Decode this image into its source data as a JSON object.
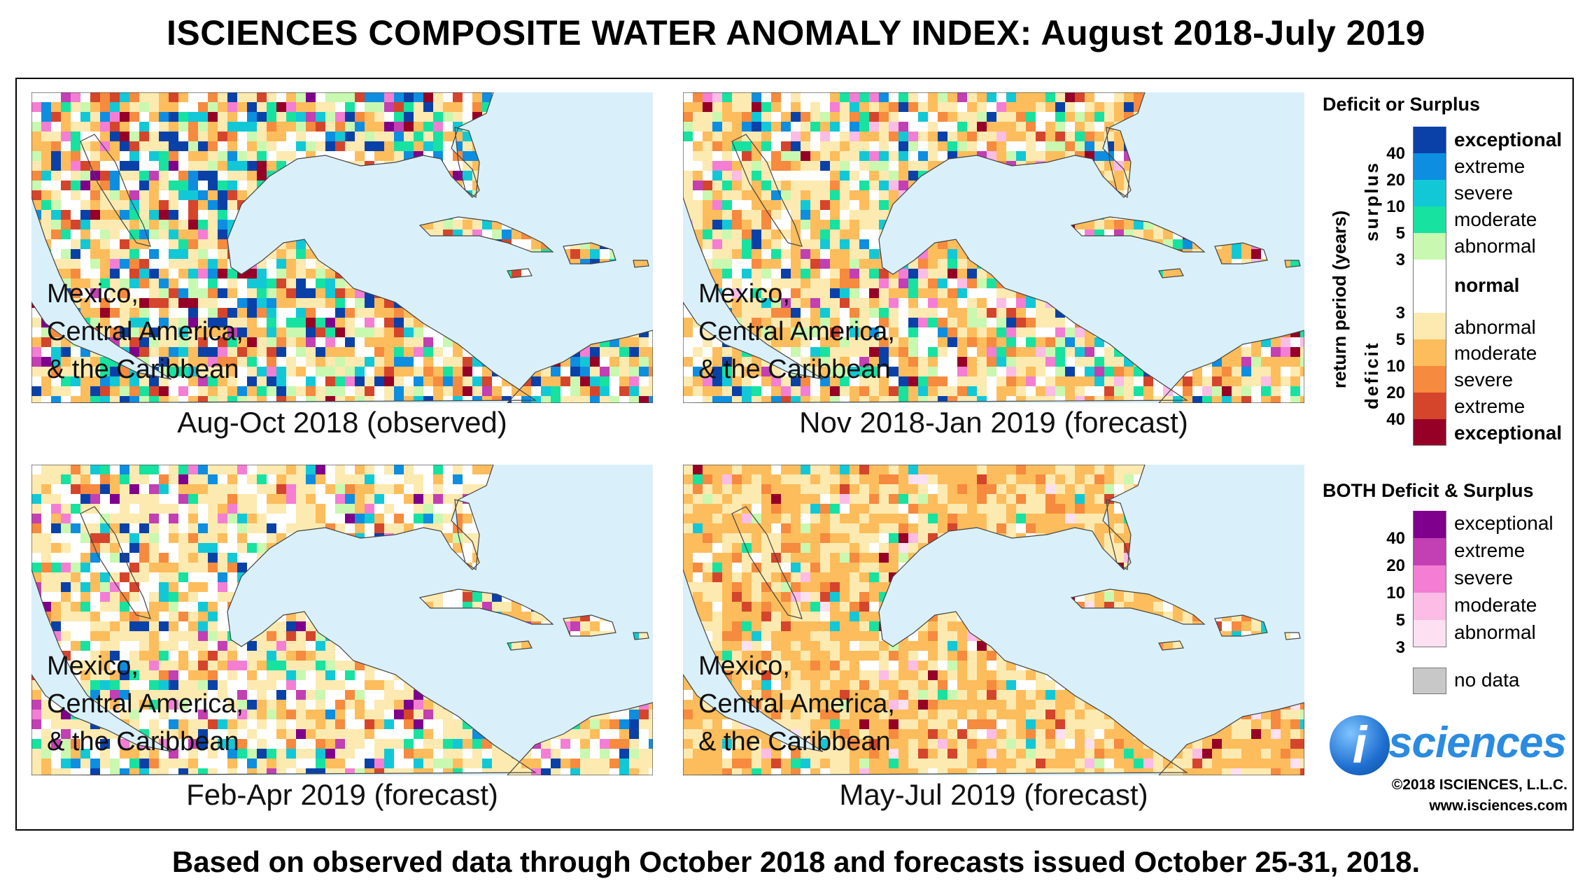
{
  "title": "ISCIENCES COMPOSITE WATER ANOMALY INDEX: August 2018-July 2019",
  "footer": "Based on observed data through October 2018 and forecasts issued October 25-31, 2018.",
  "region_label": [
    "Mexico,",
    "Central America,",
    "& the Caribbean"
  ],
  "panels": [
    {
      "caption": "Aug-Oct 2018 (observed)",
      "dominant": "mixed-observed"
    },
    {
      "caption": "Nov 2018-Jan 2019 (forecast)",
      "dominant": "deficit-moderate"
    },
    {
      "caption": "Feb-Apr 2019 (forecast)",
      "dominant": "deficit-abnormal"
    },
    {
      "caption": "May-Jul 2019 (forecast)",
      "dominant": "deficit-moderate"
    }
  ],
  "legend": {
    "heading_primary": "Deficit or Surplus",
    "axis_label": "return period (years)",
    "surplus_label": "surplus",
    "deficit_label": "deficit",
    "surplus_classes": [
      {
        "label": "exceptional",
        "color": "#0a41a8",
        "bold": true
      },
      {
        "label": "extreme",
        "color": "#0d8ee0",
        "bold": false
      },
      {
        "label": "severe",
        "color": "#12c8d6",
        "bold": false
      },
      {
        "label": "moderate",
        "color": "#17e2a0",
        "bold": false
      },
      {
        "label": "abnormal",
        "color": "#c9f8b0",
        "bold": false
      }
    ],
    "surplus_ticks": [
      "40",
      "20",
      "10",
      "5",
      "3"
    ],
    "normal": {
      "label": "normal",
      "color": "#ffffff"
    },
    "deficit_classes": [
      {
        "label": "abnormal",
        "color": "#fdeab0",
        "bold": false
      },
      {
        "label": "moderate",
        "color": "#fdbd5c",
        "bold": false
      },
      {
        "label": "severe",
        "color": "#f68a3e",
        "bold": false
      },
      {
        "label": "extreme",
        "color": "#d5452c",
        "bold": false
      },
      {
        "label": "exceptional",
        "color": "#960027",
        "bold": true
      }
    ],
    "deficit_ticks": [
      "3",
      "5",
      "10",
      "20",
      "40"
    ],
    "heading_both": "BOTH Deficit & Surplus",
    "both_classes": [
      {
        "label": "exceptional",
        "color": "#7f008c"
      },
      {
        "label": "extreme",
        "color": "#c23fb4"
      },
      {
        "label": "severe",
        "color": "#f37ed3"
      },
      {
        "label": "moderate",
        "color": "#fbbce6"
      },
      {
        "label": "abnormal",
        "color": "#fde0f1"
      }
    ],
    "both_ticks": [
      "40",
      "20",
      "10",
      "5",
      "3"
    ],
    "no_data": "no data"
  },
  "logo": {
    "text": "sciences",
    "glyph": "i"
  },
  "copyright": "©2018 ISCIENCES, L.L.C.",
  "website": "www.isciences.com",
  "colors": {
    "ocean": "#d9f0fb",
    "border": "#444444"
  }
}
